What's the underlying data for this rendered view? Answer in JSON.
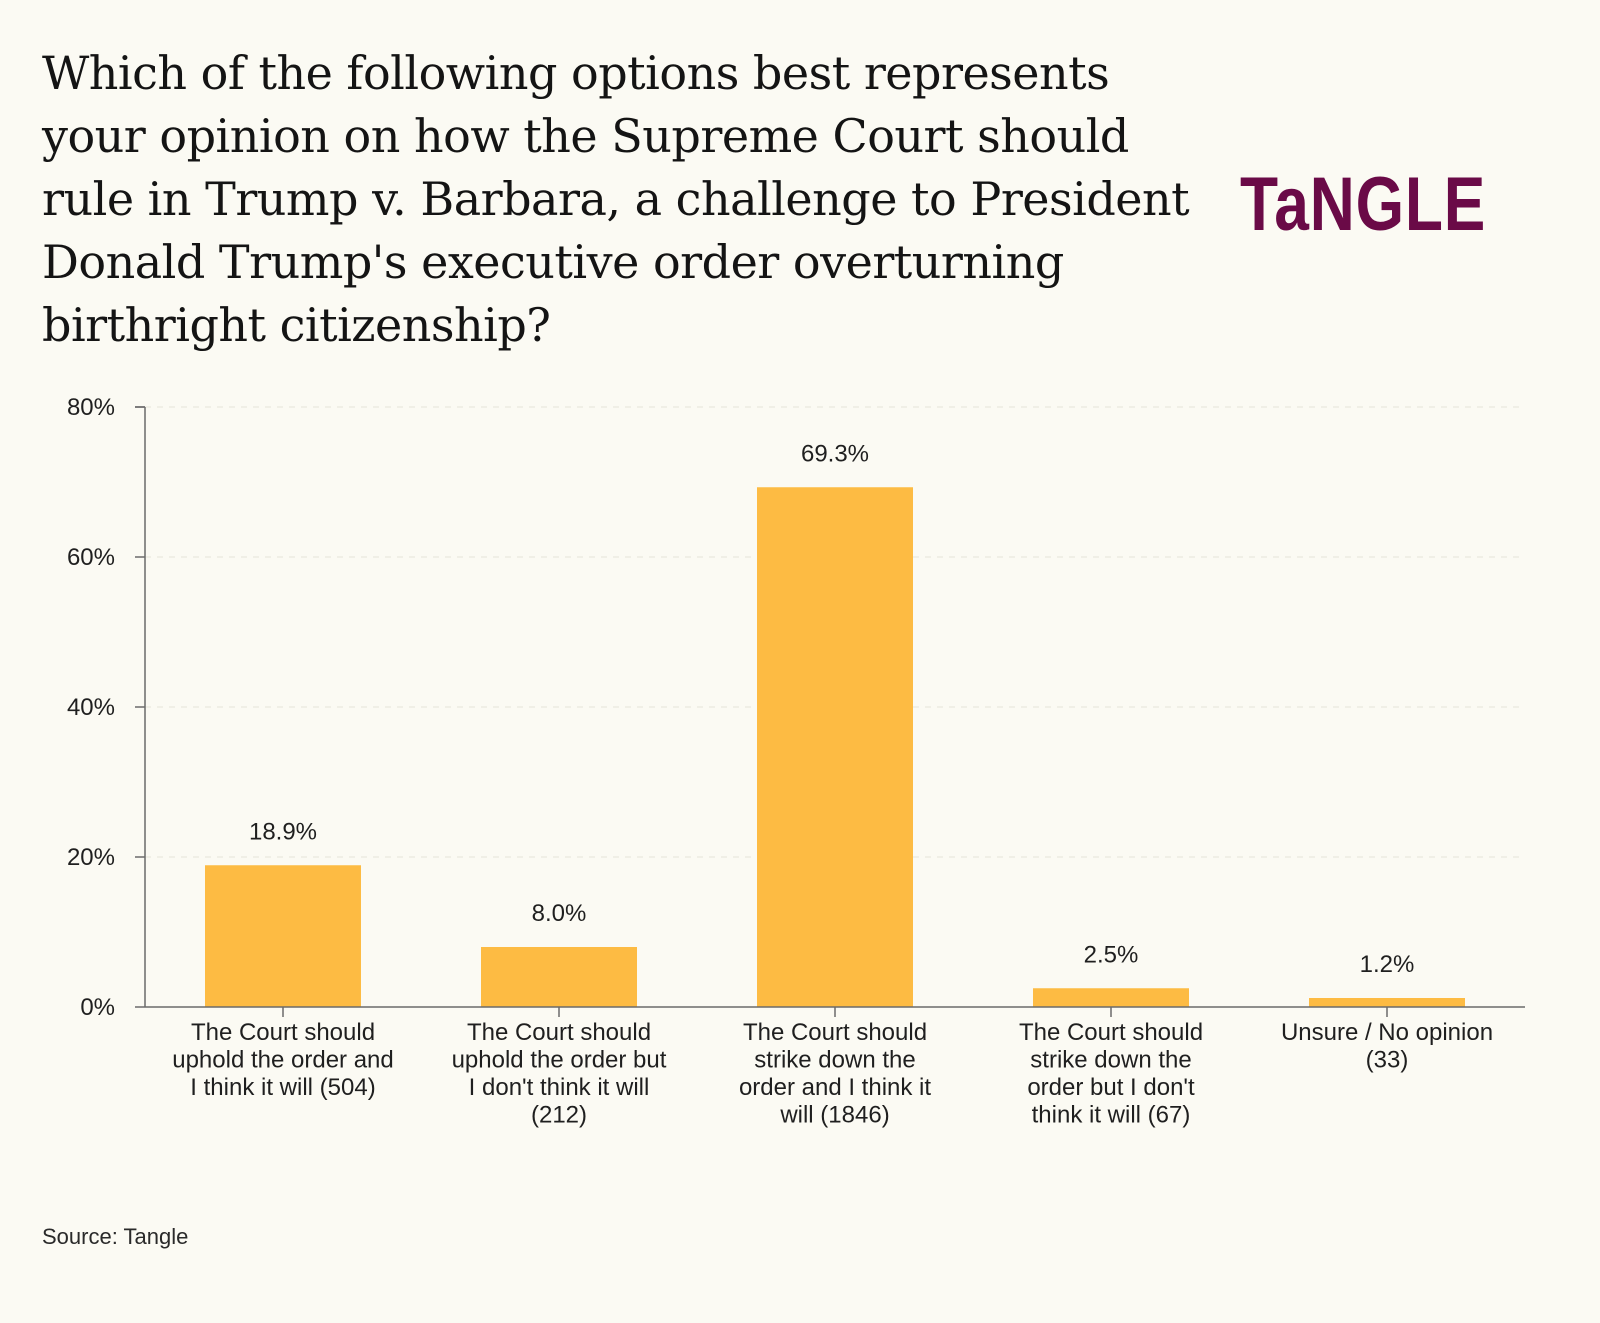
{
  "header": {
    "title": "Which of the following options best represents your opinion on how the Supreme Court should rule in Trump v. Barbara, a challenge to President Donald Trump's executive order overturning birthright citizenship?",
    "logo_text": "TaNGLE",
    "logo_color": "#6a0a47"
  },
  "footer": {
    "source": "Source: Tangle"
  },
  "colors": {
    "bar": "#fdbb43",
    "background": "#fbfaf3",
    "axis": "#6b6b6b",
    "grid": "#e6e4da"
  },
  "chart_data": {
    "type": "bar",
    "title": "Which of the following options best represents your opinion on how the Supreme Court should rule in Trump v. Barbara, a challenge to President Donald Trump's executive order overturning birthright citizenship?",
    "xlabel": "",
    "ylabel": "",
    "ylim": [
      0,
      80
    ],
    "yticks": [
      0,
      20,
      40,
      60,
      80
    ],
    "ytick_labels": [
      "0%",
      "20%",
      "40%",
      "60%",
      "80%"
    ],
    "grid": true,
    "legend": "none",
    "categories": [
      [
        "The Court should",
        "uphold the order and",
        "I think it will (504)"
      ],
      [
        "The Court should",
        "uphold the order but",
        "I don't think it will",
        "(212)"
      ],
      [
        "The Court should",
        "strike down the",
        "order and I think it",
        "will (1846)"
      ],
      [
        "The Court should",
        "strike down the",
        "order but I don't",
        "think it will (67)"
      ],
      [
        "Unsure / No opinion",
        "(33)"
      ]
    ],
    "values": [
      18.9,
      8.0,
      69.3,
      2.5,
      1.2
    ],
    "value_labels": [
      "18.9%",
      "8.0%",
      "69.3%",
      "2.5%",
      "1.2%"
    ],
    "counts": [
      504,
      212,
      1846,
      67,
      33
    ]
  }
}
